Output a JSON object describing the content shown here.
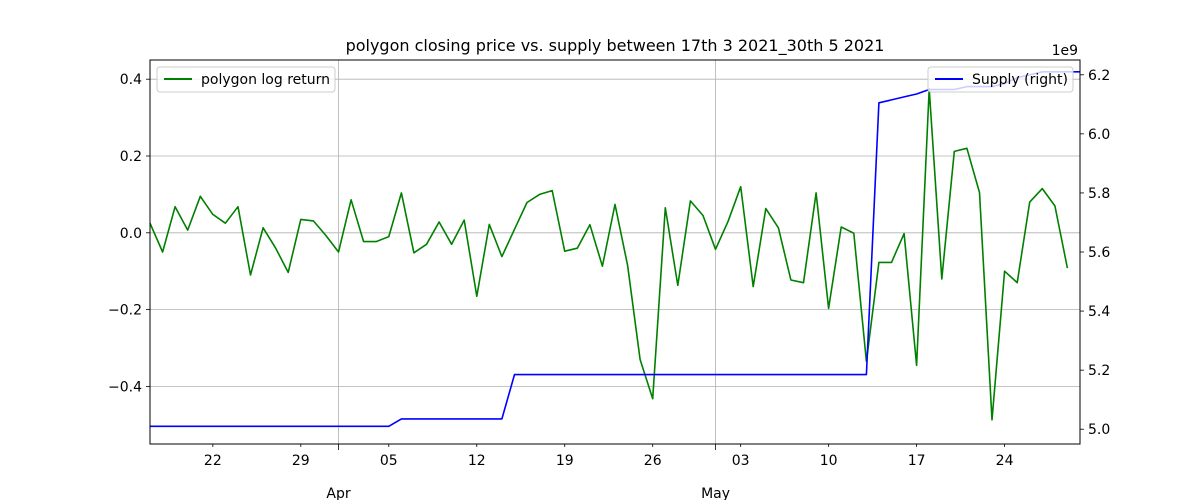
{
  "chart_data": {
    "type": "line",
    "title": "polygon closing price vs. supply between 17th 3 2021_30th 5 2021",
    "x_type": "date",
    "x_start": "2021-03-17",
    "x_end": "2021-05-30",
    "grid": true,
    "x_ticks": [
      {
        "date": "2021-03-22",
        "label": "22"
      },
      {
        "date": "2021-03-29",
        "label": "29"
      },
      {
        "date": "2021-04-05",
        "label": "05"
      },
      {
        "date": "2021-04-12",
        "label": "12"
      },
      {
        "date": "2021-04-19",
        "label": "19"
      },
      {
        "date": "2021-04-26",
        "label": "26"
      },
      {
        "date": "2021-05-03",
        "label": "03"
      },
      {
        "date": "2021-05-10",
        "label": "10"
      },
      {
        "date": "2021-05-17",
        "label": "17"
      },
      {
        "date": "2021-05-24",
        "label": "24"
      }
    ],
    "x_major_ticks": [
      {
        "date": "2021-04-01",
        "label": "Apr"
      },
      {
        "date": "2021-05-01",
        "label": "May"
      }
    ],
    "y_left": {
      "ylim": [
        -0.55,
        0.45
      ],
      "ticks": [
        -0.4,
        -0.2,
        0.0,
        0.2,
        0.4
      ],
      "tick_labels": [
        "−0.4",
        "−0.2",
        "0.0",
        "0.2",
        "0.4"
      ]
    },
    "y_right": {
      "ylim": [
        4.95,
        6.25
      ],
      "ticks": [
        5.0,
        5.2,
        5.4,
        5.6,
        5.8,
        6.0,
        6.2
      ],
      "tick_labels": [
        "5.0",
        "5.2",
        "5.4",
        "5.6",
        "5.8",
        "6.0",
        "6.2"
      ],
      "offset_label": "1e9"
    },
    "series": [
      {
        "name": "polygon log return",
        "axis": "left",
        "color": "#008000",
        "legend_position": "top-left",
        "points": [
          [
            "2021-03-17",
            0.025
          ],
          [
            "2021-03-18",
            -0.05
          ],
          [
            "2021-03-19",
            0.068
          ],
          [
            "2021-03-20",
            0.007
          ],
          [
            "2021-03-21",
            0.095
          ],
          [
            "2021-03-22",
            0.048
          ],
          [
            "2021-03-23",
            0.025
          ],
          [
            "2021-03-24",
            0.068
          ],
          [
            "2021-03-25",
            -0.11
          ],
          [
            "2021-03-26",
            0.013
          ],
          [
            "2021-03-27",
            -0.04
          ],
          [
            "2021-03-28",
            -0.103
          ],
          [
            "2021-03-29",
            0.035
          ],
          [
            "2021-03-30",
            0.031
          ],
          [
            "2021-03-31",
            -0.007
          ],
          [
            "2021-04-01",
            -0.05
          ],
          [
            "2021-04-02",
            0.086
          ],
          [
            "2021-04-03",
            -0.023
          ],
          [
            "2021-04-04",
            -0.023
          ],
          [
            "2021-04-05",
            -0.01
          ],
          [
            "2021-04-06",
            0.104
          ],
          [
            "2021-04-07",
            -0.052
          ],
          [
            "2021-04-08",
            -0.03
          ],
          [
            "2021-04-09",
            0.028
          ],
          [
            "2021-04-10",
            -0.03
          ],
          [
            "2021-04-11",
            0.033
          ],
          [
            "2021-04-12",
            -0.165
          ],
          [
            "2021-04-13",
            0.022
          ],
          [
            "2021-04-14",
            -0.062
          ],
          [
            "2021-04-15",
            0.009
          ],
          [
            "2021-04-16",
            0.079
          ],
          [
            "2021-04-17",
            0.1
          ],
          [
            "2021-04-18",
            0.11
          ],
          [
            "2021-04-19",
            -0.048
          ],
          [
            "2021-04-20",
            -0.04
          ],
          [
            "2021-04-21",
            0.021
          ],
          [
            "2021-04-22",
            -0.087
          ],
          [
            "2021-04-23",
            0.074
          ],
          [
            "2021-04-24",
            -0.085
          ],
          [
            "2021-04-25",
            -0.33
          ],
          [
            "2021-04-26",
            -0.432
          ],
          [
            "2021-04-27",
            0.065
          ],
          [
            "2021-04-28",
            -0.137
          ],
          [
            "2021-04-29",
            0.083
          ],
          [
            "2021-04-30",
            0.045
          ],
          [
            "2021-05-01",
            -0.043
          ],
          [
            "2021-05-02",
            0.03
          ],
          [
            "2021-05-03",
            0.12
          ],
          [
            "2021-05-04",
            -0.14
          ],
          [
            "2021-05-05",
            0.063
          ],
          [
            "2021-05-06",
            0.013
          ],
          [
            "2021-05-07",
            -0.123
          ],
          [
            "2021-05-08",
            -0.13
          ],
          [
            "2021-05-09",
            0.104
          ],
          [
            "2021-05-10",
            -0.197
          ],
          [
            "2021-05-11",
            0.015
          ],
          [
            "2021-05-12",
            -0.001
          ],
          [
            "2021-05-13",
            -0.335
          ],
          [
            "2021-05-14",
            -0.077
          ],
          [
            "2021-05-15",
            -0.077
          ],
          [
            "2021-05-16",
            -0.002
          ],
          [
            "2021-05-17",
            -0.345
          ],
          [
            "2021-05-18",
            0.375
          ],
          [
            "2021-05-19",
            -0.12
          ],
          [
            "2021-05-20",
            0.212
          ],
          [
            "2021-05-21",
            0.22
          ],
          [
            "2021-05-22",
            0.105
          ],
          [
            "2021-05-23",
            -0.487
          ],
          [
            "2021-05-24",
            -0.1
          ],
          [
            "2021-05-25",
            -0.13
          ],
          [
            "2021-05-26",
            0.08
          ],
          [
            "2021-05-27",
            0.115
          ],
          [
            "2021-05-28",
            0.07
          ],
          [
            "2021-05-29",
            -0.092
          ]
        ]
      },
      {
        "name": "Supply (right)",
        "axis": "right",
        "color": "#0000ff",
        "legend_position": "top-right",
        "points": [
          [
            "2021-03-17",
            5.01
          ],
          [
            "2021-04-05",
            5.01
          ],
          [
            "2021-04-06",
            5.035
          ],
          [
            "2021-04-14",
            5.035
          ],
          [
            "2021-04-15",
            5.185
          ],
          [
            "2021-05-13",
            5.185
          ],
          [
            "2021-05-14",
            6.105
          ],
          [
            "2021-05-15",
            6.115
          ],
          [
            "2021-05-16",
            6.125
          ],
          [
            "2021-05-17",
            6.135
          ],
          [
            "2021-05-18",
            6.15
          ],
          [
            "2021-05-19",
            6.15
          ],
          [
            "2021-05-20",
            6.15
          ],
          [
            "2021-05-21",
            6.16
          ],
          [
            "2021-05-22",
            6.16
          ],
          [
            "2021-05-23",
            6.16
          ],
          [
            "2021-05-24",
            6.17
          ],
          [
            "2021-05-25",
            6.19
          ],
          [
            "2021-05-26",
            6.2
          ],
          [
            "2021-05-27",
            6.21
          ],
          [
            "2021-05-28",
            6.21
          ],
          [
            "2021-05-29",
            6.21
          ],
          [
            "2021-05-30",
            6.21
          ]
        ]
      }
    ]
  }
}
